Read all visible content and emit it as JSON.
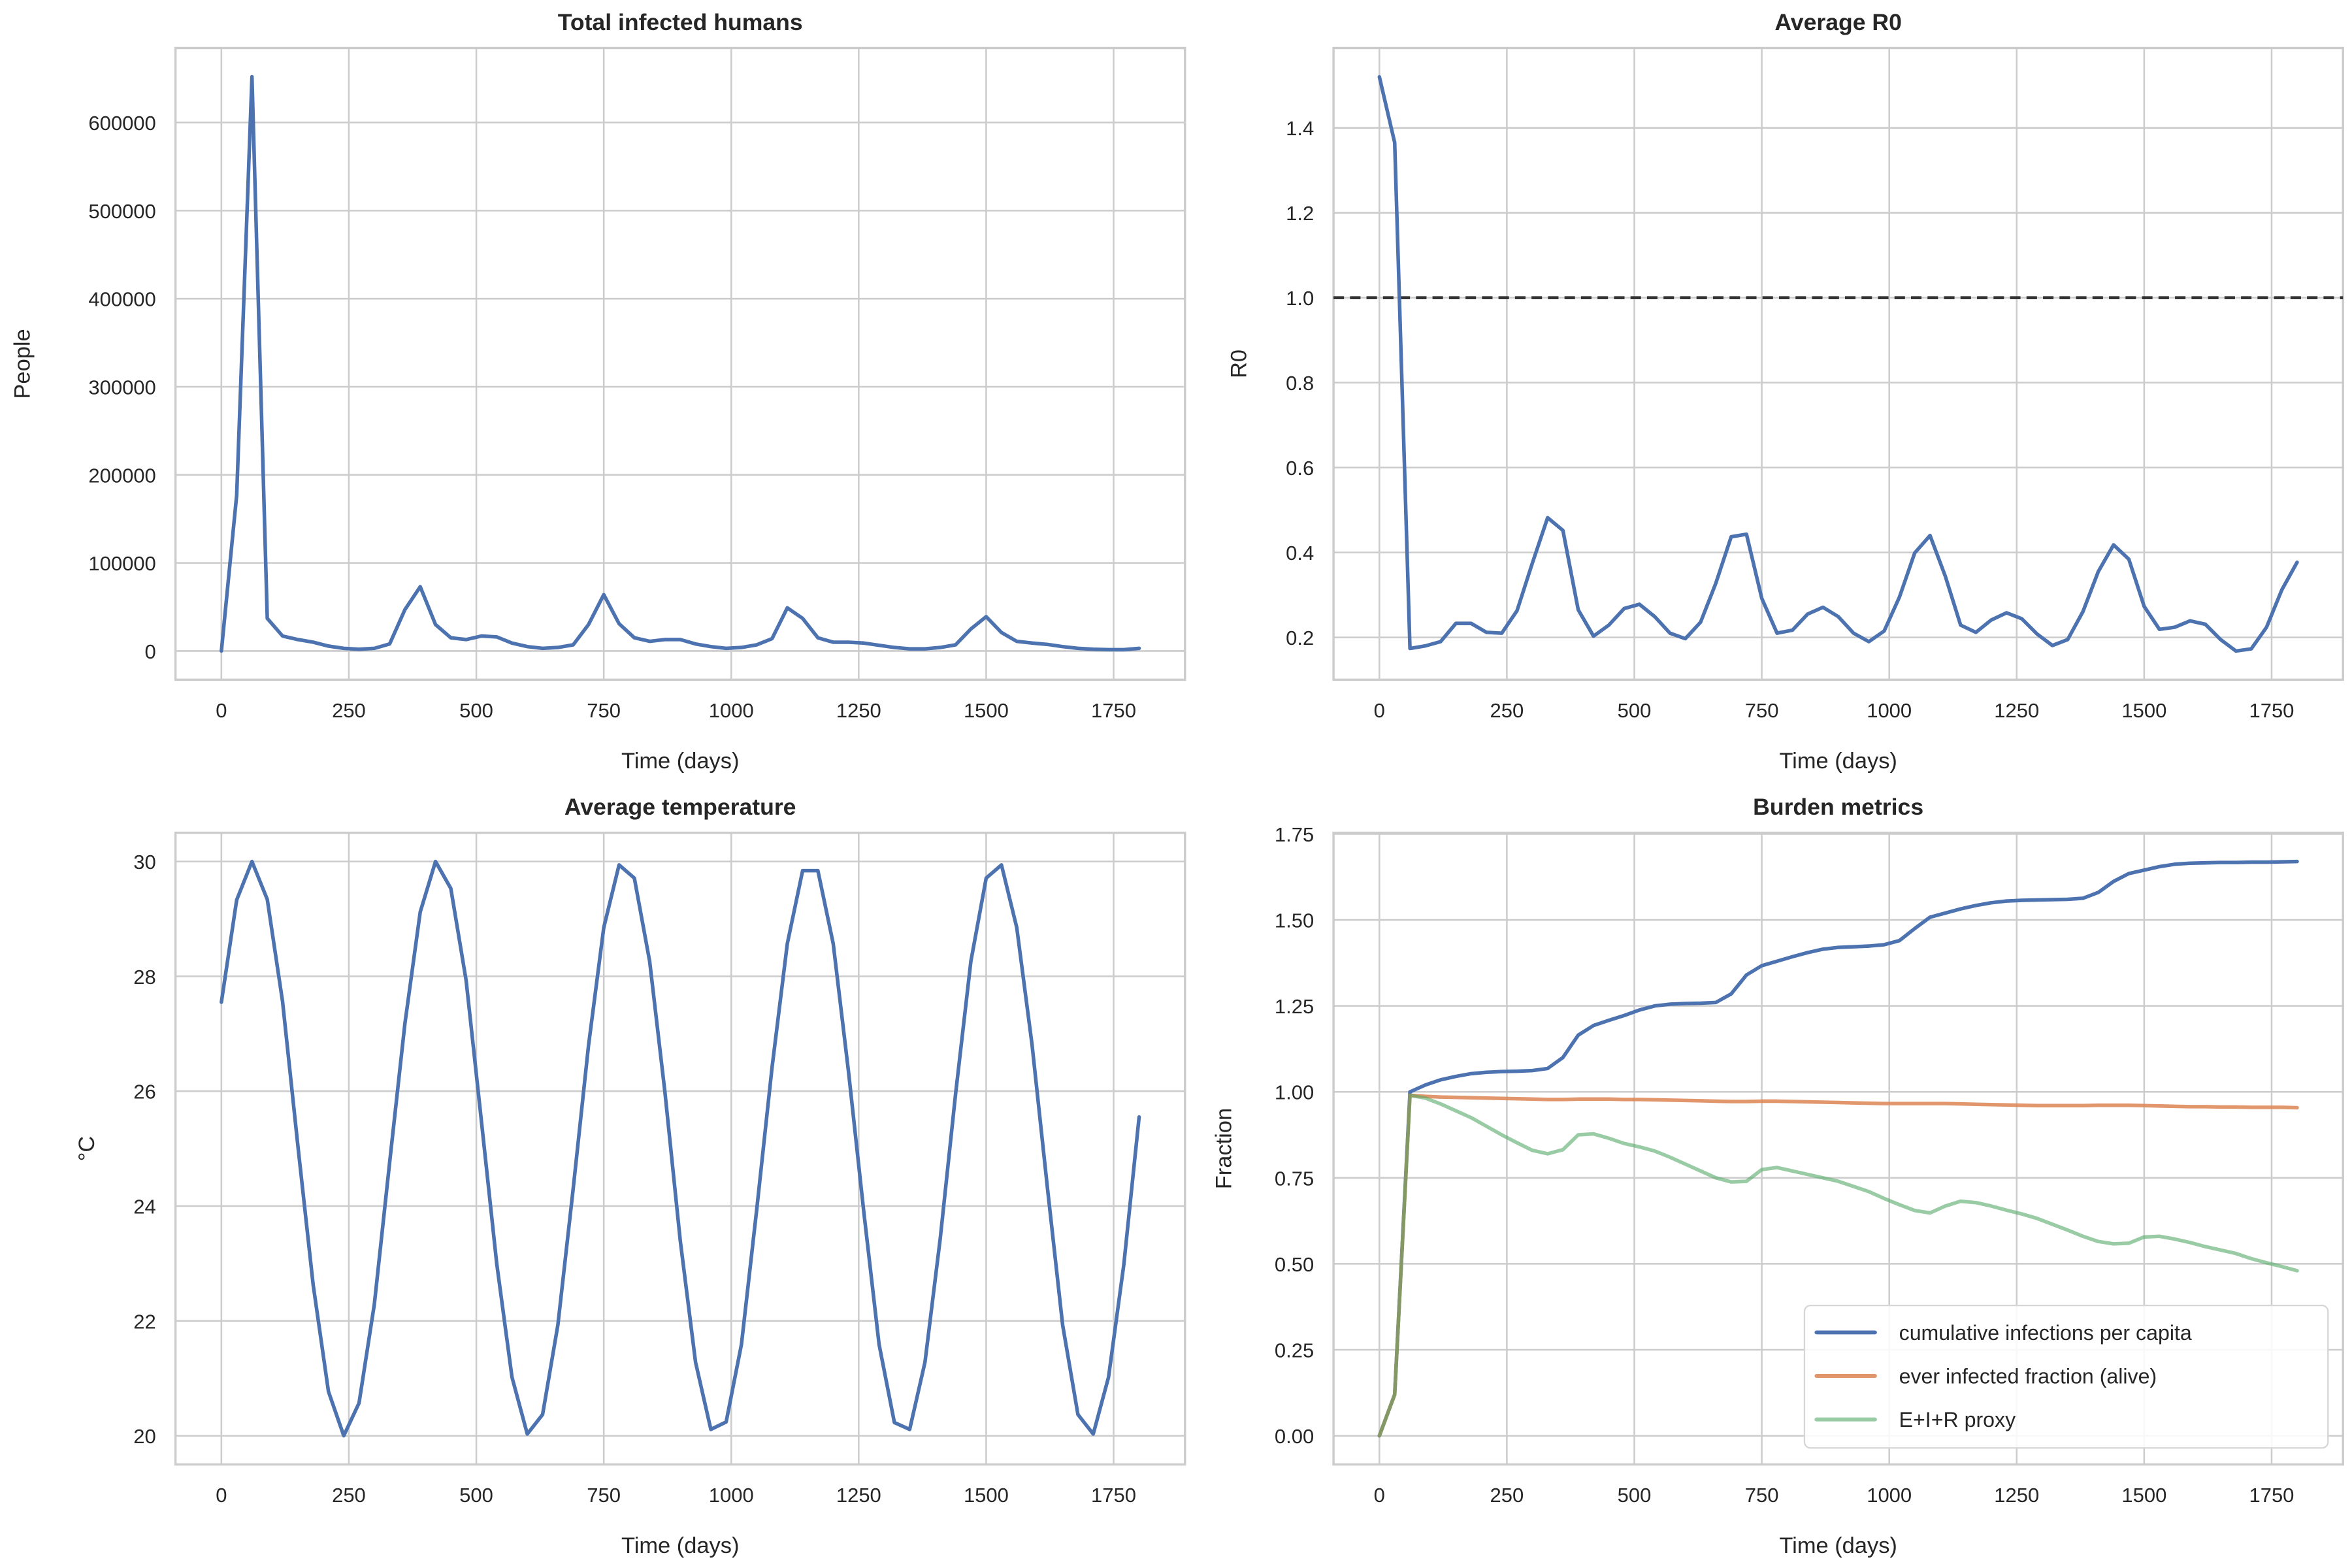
{
  "chart_data": [
    {
      "type": "line",
      "title": "Total infected humans",
      "xlabel": "Time (days)",
      "ylabel": "People",
      "xlim": [
        -90,
        1890
      ],
      "ylim": [
        -32600,
        684600
      ],
      "grid": true,
      "xticks": [
        "0",
        "250",
        "500",
        "750",
        "1000",
        "1250",
        "1500",
        "1750"
      ],
      "yticks": [
        "0",
        "100000",
        "200000",
        "300000",
        "400000",
        "500000",
        "600000"
      ],
      "x": [
        0,
        30,
        60,
        90,
        120,
        150,
        180,
        210,
        240,
        270,
        300,
        330,
        360,
        390,
        420,
        450,
        480,
        510,
        540,
        570,
        600,
        630,
        660,
        690,
        720,
        750,
        780,
        810,
        840,
        870,
        900,
        930,
        960,
        990,
        1020,
        1050,
        1080,
        1110,
        1140,
        1170,
        1200,
        1230,
        1260,
        1290,
        1320,
        1350,
        1380,
        1410,
        1440,
        1470,
        1500,
        1530,
        1560,
        1590,
        1620,
        1650,
        1680,
        1710,
        1740,
        1770,
        1800
      ],
      "series": [
        {
          "color": "#4c72b0",
          "values": [
            0,
            177000,
            652000,
            37000,
            17000,
            13000,
            10000,
            5600,
            3000,
            2000,
            3000,
            8000,
            47000,
            73000,
            30000,
            15000,
            13000,
            17000,
            16000,
            9000,
            5000,
            3000,
            4000,
            7000,
            30000,
            64000,
            31000,
            15000,
            11000,
            13000,
            13000,
            8000,
            5000,
            3000,
            4000,
            7000,
            14000,
            49000,
            37000,
            15000,
            10000,
            10000,
            9000,
            6500,
            4000,
            2500,
            2500,
            4000,
            7000,
            25000,
            39000,
            21000,
            11000,
            9000,
            7500,
            5000,
            3000,
            2000,
            1500,
            1500,
            3000
          ]
        }
      ]
    },
    {
      "type": "line",
      "title": "Average R0",
      "xlabel": "Time (days)",
      "ylabel": "R0",
      "xlim": [
        -90,
        1890
      ],
      "ylim": [
        0.1004,
        1.588
      ],
      "grid": true,
      "xticks": [
        "0",
        "250",
        "500",
        "750",
        "1000",
        "1250",
        "1500",
        "1750"
      ],
      "yticks": [
        "0.2",
        "0.4",
        "0.6",
        "0.8",
        "1.0",
        "1.2",
        "1.4"
      ],
      "hline": {
        "y": 1.0,
        "style": "dashed",
        "color": "#333333"
      },
      "x": [
        0,
        30,
        60,
        90,
        120,
        150,
        180,
        210,
        240,
        270,
        300,
        330,
        360,
        390,
        420,
        450,
        480,
        510,
        540,
        570,
        600,
        630,
        660,
        690,
        720,
        750,
        780,
        810,
        840,
        870,
        900,
        930,
        960,
        990,
        1020,
        1050,
        1080,
        1110,
        1140,
        1170,
        1200,
        1230,
        1260,
        1290,
        1320,
        1350,
        1380,
        1410,
        1440,
        1470,
        1500,
        1530,
        1560,
        1590,
        1620,
        1650,
        1680,
        1710,
        1740,
        1770,
        1800
      ],
      "series": [
        {
          "color": "#4c72b0",
          "values": [
            1.52,
            1.365,
            0.174,
            0.18,
            0.19,
            0.233,
            0.233,
            0.212,
            0.21,
            0.263,
            0.375,
            0.482,
            0.452,
            0.265,
            0.203,
            0.229,
            0.268,
            0.278,
            0.249,
            0.21,
            0.197,
            0.236,
            0.328,
            0.437,
            0.443,
            0.292,
            0.21,
            0.217,
            0.255,
            0.271,
            0.249,
            0.21,
            0.19,
            0.215,
            0.295,
            0.399,
            0.44,
            0.344,
            0.229,
            0.212,
            0.241,
            0.258,
            0.244,
            0.208,
            0.181,
            0.195,
            0.261,
            0.355,
            0.418,
            0.384,
            0.273,
            0.219,
            0.224,
            0.239,
            0.231,
            0.195,
            0.168,
            0.173,
            0.224,
            0.312,
            0.377
          ]
        }
      ]
    },
    {
      "type": "line",
      "title": "Average temperature",
      "xlabel": "Time (days)",
      "ylabel": "°C",
      "xlim": [
        -90,
        1890
      ],
      "ylim": [
        19.5,
        30.5
      ],
      "grid": true,
      "xticks": [
        "0",
        "250",
        "500",
        "750",
        "1000",
        "1250",
        "1500",
        "1750"
      ],
      "yticks": [
        "20",
        "22",
        "24",
        "26",
        "28",
        "30"
      ],
      "x": [
        0,
        30,
        60,
        90,
        120,
        150,
        180,
        210,
        240,
        270,
        300,
        330,
        360,
        390,
        420,
        450,
        480,
        510,
        540,
        570,
        600,
        630,
        660,
        690,
        720,
        750,
        780,
        810,
        840,
        870,
        900,
        930,
        960,
        990,
        1020,
        1050,
        1080,
        1110,
        1140,
        1170,
        1200,
        1230,
        1260,
        1290,
        1320,
        1350,
        1380,
        1410,
        1440,
        1470,
        1500,
        1530,
        1560,
        1590,
        1620,
        1650,
        1680,
        1710,
        1740,
        1770,
        1800
      ],
      "series": [
        {
          "color": "#4c72b0",
          "values": [
            27.55,
            29.33,
            30.0,
            29.34,
            27.56,
            25.05,
            22.63,
            20.77,
            20.0,
            20.57,
            22.29,
            24.76,
            27.18,
            29.12,
            30.0,
            29.53,
            27.93,
            25.48,
            23.0,
            21.02,
            20.03,
            20.37,
            21.93,
            24.3,
            26.79,
            28.85,
            29.94,
            29.71,
            28.26,
            25.98,
            23.4,
            21.28,
            20.11,
            20.24,
            21.59,
            23.94,
            26.41,
            28.57,
            29.84,
            29.84,
            28.57,
            26.34,
            23.9,
            21.59,
            20.23,
            20.11,
            21.28,
            23.44,
            25.95,
            28.26,
            29.71,
            29.94,
            28.85,
            26.81,
            24.33,
            21.93,
            20.37,
            20.03,
            21.02,
            22.98,
            25.55
          ]
        }
      ]
    },
    {
      "type": "line",
      "title": "Burden metrics",
      "xlabel": "Time (days)",
      "ylabel": "Fraction",
      "xlim": [
        -90,
        1890
      ],
      "ylim": [
        -0.0835,
        1.7535
      ],
      "grid": true,
      "legend": "lower right",
      "xticks": [
        "0",
        "250",
        "500",
        "750",
        "1000",
        "1250",
        "1500",
        "1750"
      ],
      "yticks": [
        "0.00",
        "0.25",
        "0.50",
        "0.75",
        "1.00",
        "1.25",
        "1.50",
        "1.75"
      ],
      "x": [
        0,
        30,
        60,
        90,
        120,
        150,
        180,
        210,
        240,
        270,
        300,
        330,
        360,
        390,
        420,
        450,
        480,
        510,
        540,
        570,
        600,
        630,
        660,
        690,
        720,
        750,
        780,
        810,
        840,
        870,
        900,
        930,
        960,
        990,
        1020,
        1050,
        1080,
        1110,
        1140,
        1170,
        1200,
        1230,
        1260,
        1290,
        1320,
        1350,
        1380,
        1410,
        1440,
        1470,
        1500,
        1530,
        1560,
        1590,
        1620,
        1650,
        1680,
        1710,
        1740,
        1770,
        1800
      ],
      "series": [
        {
          "name": "cumulative infections per capita",
          "color": "#4c72b0",
          "opacity": 1,
          "values": [
            0,
            0.12,
            1.0,
            1.02,
            1.035,
            1.045,
            1.053,
            1.057,
            1.059,
            1.06,
            1.062,
            1.068,
            1.1,
            1.165,
            1.193,
            1.208,
            1.222,
            1.238,
            1.25,
            1.255,
            1.257,
            1.258,
            1.26,
            1.285,
            1.34,
            1.367,
            1.38,
            1.393,
            1.405,
            1.415,
            1.42,
            1.422,
            1.424,
            1.428,
            1.44,
            1.475,
            1.508,
            1.52,
            1.532,
            1.542,
            1.55,
            1.555,
            1.557,
            1.558,
            1.559,
            1.56,
            1.563,
            1.58,
            1.612,
            1.635,
            1.645,
            1.655,
            1.662,
            1.665,
            1.666,
            1.667,
            1.667,
            1.668,
            1.668,
            1.669,
            1.67
          ]
        },
        {
          "name": "ever infected fraction (alive)",
          "color": "#dd8452",
          "opacity": 0.85,
          "values": [
            0,
            0.12,
            0.99,
            0.987,
            0.985,
            0.984,
            0.983,
            0.982,
            0.981,
            0.98,
            0.979,
            0.978,
            0.978,
            0.979,
            0.979,
            0.979,
            0.978,
            0.978,
            0.977,
            0.976,
            0.975,
            0.974,
            0.973,
            0.972,
            0.972,
            0.973,
            0.973,
            0.972,
            0.971,
            0.97,
            0.969,
            0.968,
            0.967,
            0.966,
            0.966,
            0.966,
            0.966,
            0.966,
            0.965,
            0.964,
            0.963,
            0.962,
            0.961,
            0.96,
            0.96,
            0.96,
            0.96,
            0.961,
            0.961,
            0.961,
            0.96,
            0.959,
            0.958,
            0.957,
            0.957,
            0.956,
            0.956,
            0.955,
            0.955,
            0.955,
            0.954
          ]
        },
        {
          "name": "E+I+R proxy",
          "color": "#55a868",
          "opacity": 0.6,
          "values": [
            0,
            0.12,
            0.99,
            0.982,
            0.965,
            0.945,
            0.925,
            0.9,
            0.875,
            0.852,
            0.83,
            0.82,
            0.832,
            0.875,
            0.878,
            0.865,
            0.85,
            0.84,
            0.828,
            0.81,
            0.79,
            0.77,
            0.75,
            0.738,
            0.74,
            0.774,
            0.78,
            0.77,
            0.76,
            0.75,
            0.74,
            0.725,
            0.71,
            0.69,
            0.672,
            0.655,
            0.648,
            0.668,
            0.682,
            0.678,
            0.668,
            0.656,
            0.645,
            0.632,
            0.615,
            0.598,
            0.58,
            0.565,
            0.558,
            0.56,
            0.578,
            0.58,
            0.572,
            0.562,
            0.55,
            0.54,
            0.53,
            0.515,
            0.503,
            0.492,
            0.48
          ]
        }
      ]
    }
  ]
}
